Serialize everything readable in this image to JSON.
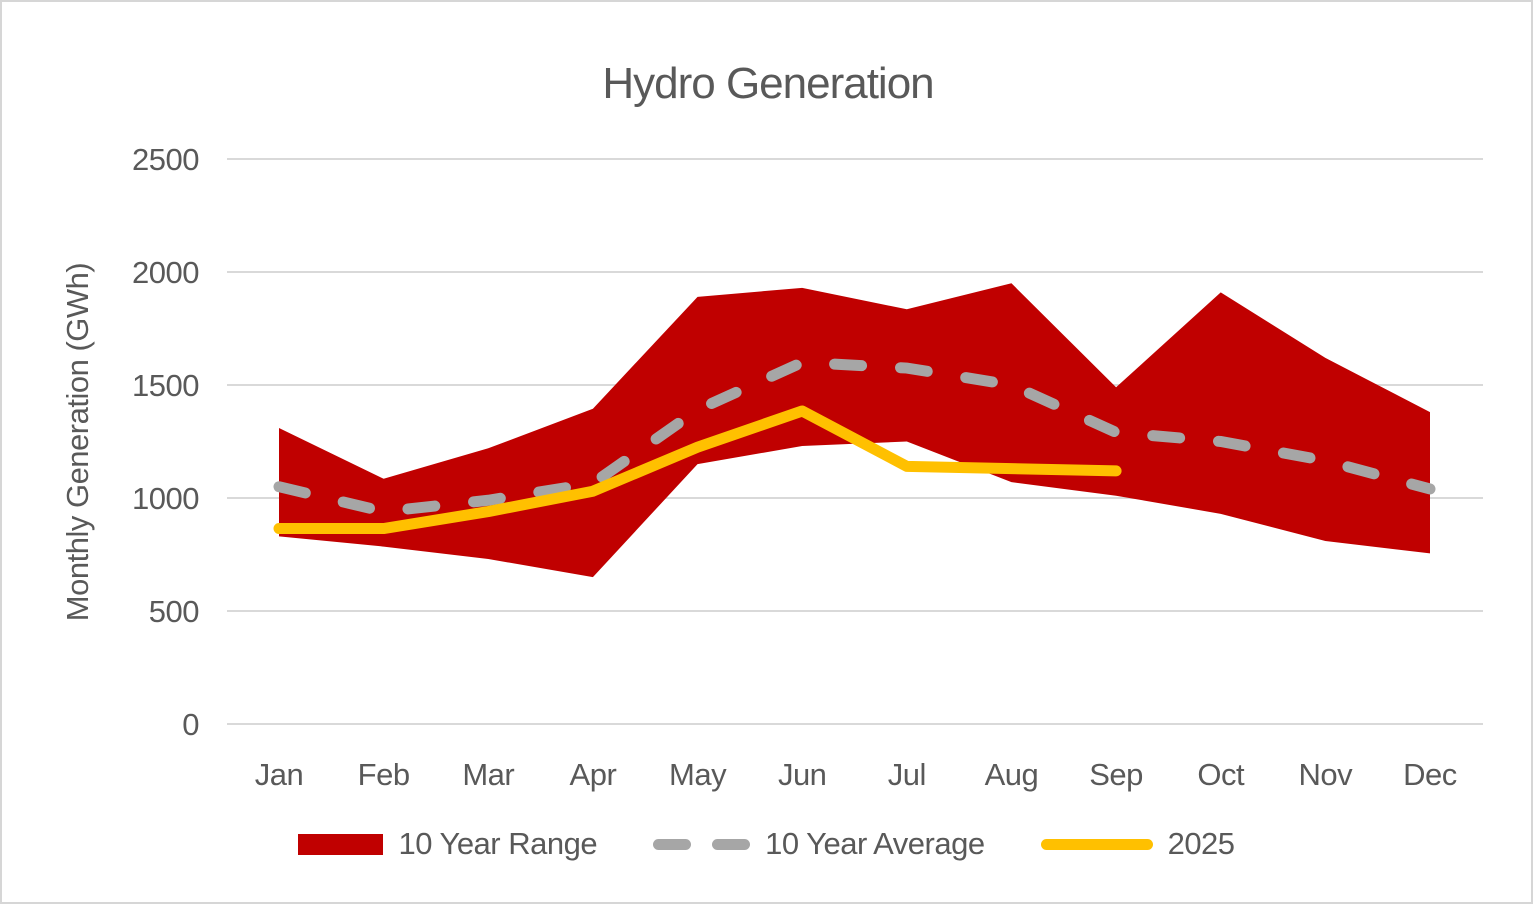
{
  "chart": {
    "title": "Hydro Generation",
    "y_axis_label": "Monthly Generation (GWh)"
  },
  "legend": {
    "items": [
      {
        "label": "10 Year Range",
        "type": "band",
        "color": "#C00000"
      },
      {
        "label": "10 Year Average",
        "type": "dashed-line",
        "color": "#A6A6A6"
      },
      {
        "label": "2025",
        "type": "line",
        "color": "#FFC000"
      }
    ]
  },
  "chart_data": {
    "type": "area",
    "subtype": "range-band-with-lines",
    "title": "Hydro Generation",
    "xlabel": "",
    "ylabel": "Monthly Generation (GWh)",
    "categories": [
      "Jan",
      "Feb",
      "Mar",
      "Apr",
      "May",
      "Jun",
      "Jul",
      "Aug",
      "Sep",
      "Oct",
      "Nov",
      "Dec"
    ],
    "ylim": [
      0,
      2500
    ],
    "y_ticks": [
      0,
      500,
      1000,
      1500,
      2000,
      2500
    ],
    "grid": "horizontal",
    "legend_position": "bottom",
    "series": [
      {
        "name": "10 Year Range",
        "type": "range-band",
        "color": "#C00000",
        "max": [
          1310,
          1085,
          1220,
          1395,
          1890,
          1930,
          1835,
          1950,
          1490,
          1910,
          1620,
          1380
        ],
        "min": [
          830,
          785,
          730,
          650,
          1150,
          1230,
          1250,
          1070,
          1010,
          930,
          810,
          755
        ]
      },
      {
        "name": "10 Year Average",
        "type": "dashed-line",
        "color": "#A6A6A6",
        "values": [
          1050,
          940,
          990,
          1065,
          1390,
          1600,
          1575,
          1500,
          1290,
          1250,
          1165,
          1040
        ]
      },
      {
        "name": "2025",
        "type": "line",
        "color": "#FFC000",
        "values": [
          865,
          865,
          940,
          1030,
          1225,
          1385,
          1140,
          1130,
          1120,
          null,
          null,
          null
        ]
      }
    ],
    "colors": {
      "grid": "#D9D9D9",
      "text": "#595959",
      "frame_border": "#D6D6D6",
      "background": "#FFFFFF"
    }
  }
}
